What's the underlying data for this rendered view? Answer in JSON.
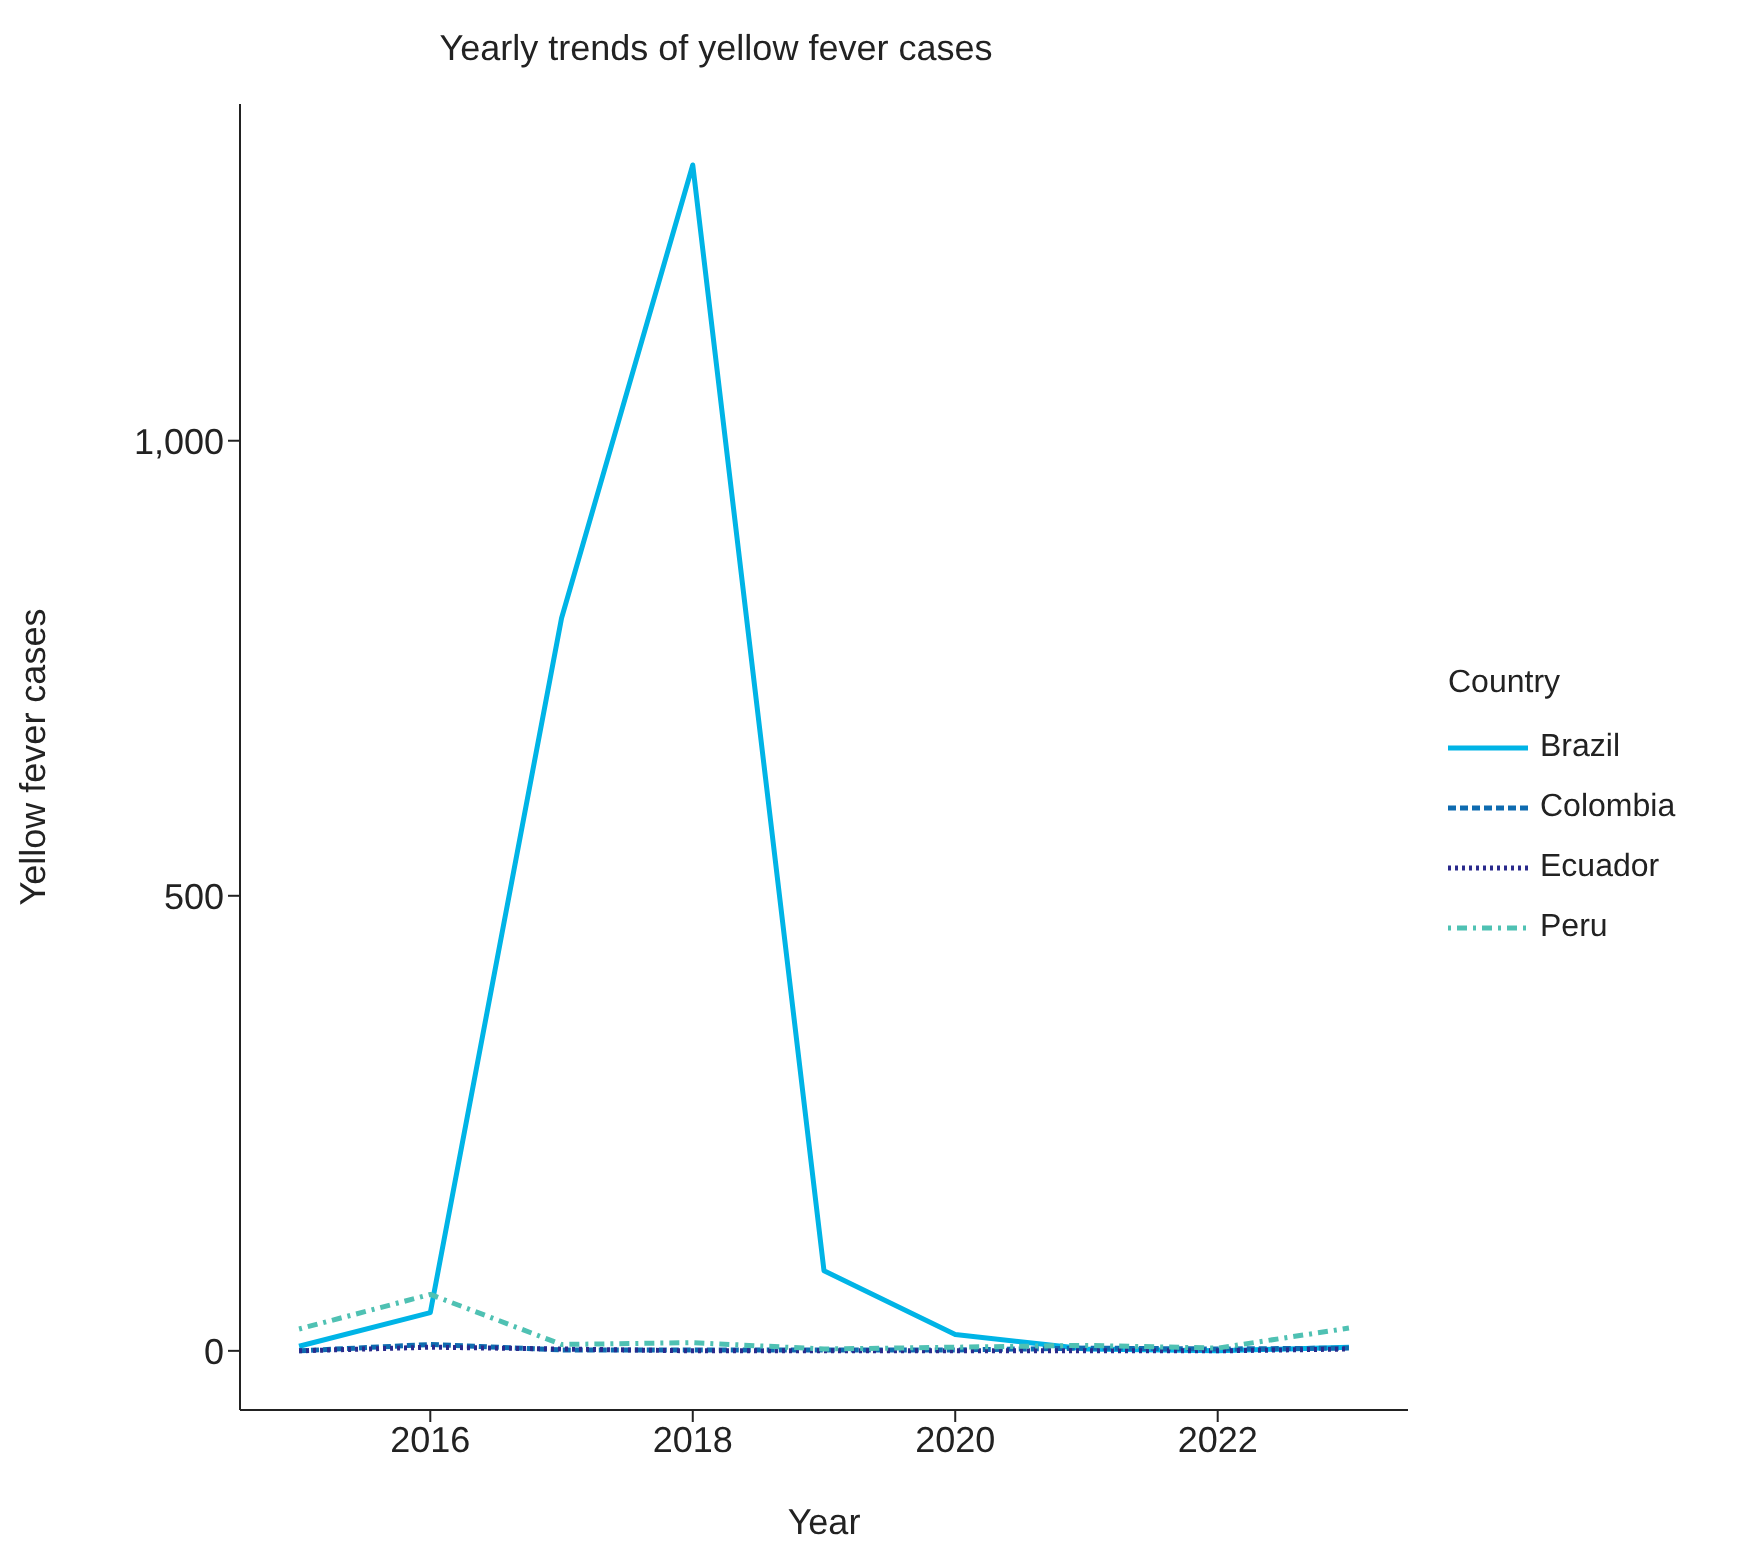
{
  "chart_data": {
    "type": "line",
    "title": "Yearly trends of yellow fever cases",
    "xlabel": "Year",
    "ylabel": "Yellow fever cases",
    "legend_title": "Country",
    "x": [
      2015,
      2016,
      2017,
      2018,
      2019,
      2020,
      2021,
      2022,
      2023
    ],
    "series": [
      {
        "name": "Brazil",
        "color": "#00b4e6",
        "line_style": "solid",
        "values": [
          5,
          42,
          805,
          1303,
          88,
          18,
          2,
          0,
          4
        ]
      },
      {
        "name": "Colombia",
        "color": "#0e6bb0",
        "line_style": "dashed",
        "values": [
          0,
          7,
          1,
          1,
          1,
          1,
          3,
          2,
          3
        ]
      },
      {
        "name": "Ecuador",
        "color": "#2a2a8c",
        "line_style": "dotted",
        "values": [
          0,
          4,
          2,
          0,
          0,
          0,
          0,
          0,
          2
        ]
      },
      {
        "name": "Peru",
        "color": "#4fc1b3",
        "line_style": "dashdot",
        "values": [
          24,
          62,
          7,
          9,
          2,
          4,
          6,
          3,
          25
        ]
      }
    ],
    "xlim": [
      2014.55,
      2023.45
    ],
    "xticks": [
      2016,
      2018,
      2020,
      2022
    ],
    "ylim": [
      -65,
      1370
    ],
    "yticks": [
      0,
      {
        "value": 500,
        "label": "500"
      },
      {
        "value": 1000,
        "label": "1,000"
      }
    ],
    "legend": "right"
  }
}
